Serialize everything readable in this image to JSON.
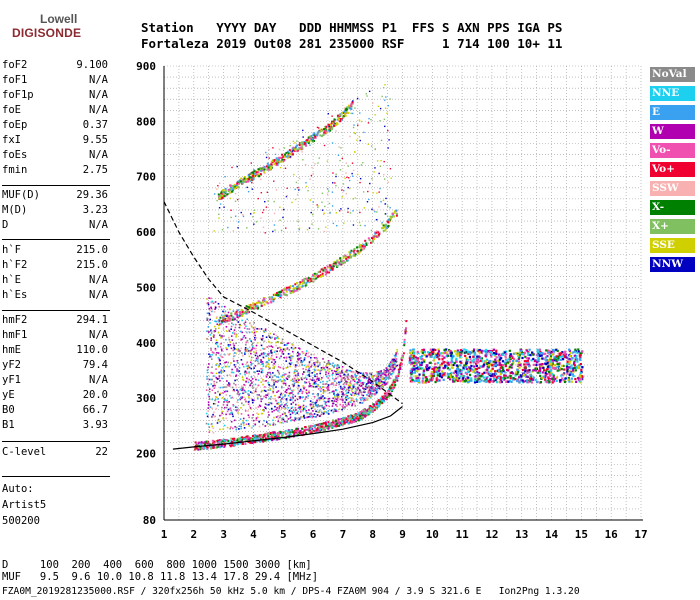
{
  "logo": {
    "top": "Lowell",
    "main": "DIGISONDE"
  },
  "header": {
    "row1": "Station   YYYY DAY   DDD HHMMSS P1  FFS S AXN PPS IGA PS",
    "row2": "Fortaleza 2019 Out08 281 235000 RSF     1 714 100 10+ 11"
  },
  "params": [
    {
      "name": "foF2",
      "value": "9.100"
    },
    {
      "name": "foF1",
      "value": "N/A"
    },
    {
      "name": "foF1p",
      "value": "N/A"
    },
    {
      "name": "foE",
      "value": "N/A"
    },
    {
      "name": "foEp",
      "value": "0.37"
    },
    {
      "name": "fxI",
      "value": "9.55"
    },
    {
      "name": "foEs",
      "value": "N/A"
    },
    {
      "name": "fmin",
      "value": "2.75"
    },
    {
      "name": "MUF(D)",
      "value": "29.36"
    },
    {
      "name": "M(D)",
      "value": "3.23"
    },
    {
      "name": "D",
      "value": "N/A"
    },
    {
      "name": "h`F",
      "value": "215.0"
    },
    {
      "name": "h`F2",
      "value": "215.0"
    },
    {
      "name": "h`E",
      "value": "N/A"
    },
    {
      "name": "h`Es",
      "value": "N/A"
    },
    {
      "name": "hmF2",
      "value": "294.1"
    },
    {
      "name": "hmF1",
      "value": "N/A"
    },
    {
      "name": "hmE",
      "value": "110.0"
    },
    {
      "name": "yF2",
      "value": "79.4"
    },
    {
      "name": "yF1",
      "value": "N/A"
    },
    {
      "name": "yE",
      "value": "20.0"
    },
    {
      "name": "B0",
      "value": "66.7"
    },
    {
      "name": "B1",
      "value": "3.93"
    },
    {
      "name": "C-level",
      "value": "22"
    }
  ],
  "auto": {
    "line1": "Auto:",
    "line2": "Artist5",
    "line3": "500200"
  },
  "legend": [
    {
      "label": "NoVal",
      "color": "#8a8a8a"
    },
    {
      "label": "NNE",
      "color": "#1ed0f0"
    },
    {
      "label": "E",
      "color": "#3aa0f0"
    },
    {
      "label": "W",
      "color": "#b000b0"
    },
    {
      "label": "Vo-",
      "color": "#f050b0"
    },
    {
      "label": "Vo+",
      "color": "#f00030"
    },
    {
      "label": "SSW",
      "color": "#f8b0b0"
    },
    {
      "label": "X-",
      "color": "#008000"
    },
    {
      "label": "X+",
      "color": "#80c060"
    },
    {
      "label": "SSE",
      "color": "#d0d000"
    },
    {
      "label": "NNW",
      "color": "#0000c0"
    }
  ],
  "footer": {
    "d_line": "D     100  200  400  600  800 1000 1500 3000 [km]",
    "muf_line": "MUF   9.5  9.6 10.0 10.8 11.8 13.4 17.8 29.4 [MHz]",
    "file_line": "FZA0M_2019281235000.RSF / 320fx256h 50 kHz 5.0 km / DPS-4 FZA0M 904 / 3.9 S 321.6 E   Ion2Png 1.3.20"
  },
  "chart_data": {
    "type": "scatter",
    "xlim": [
      1,
      17
    ],
    "ylim": [
      80,
      900
    ],
    "x_ticks": [
      1,
      2,
      3,
      4,
      5,
      6,
      7,
      8,
      9,
      10,
      11,
      12,
      13,
      14,
      15,
      16,
      17
    ],
    "y_ticks": [
      80,
      200,
      300,
      400,
      500,
      600,
      700,
      800,
      900
    ],
    "grid": true,
    "legend_position": "right",
    "series": [
      {
        "name": "trace-low",
        "role": "solid",
        "points": [
          [
            1.3,
            208
          ],
          [
            2,
            212
          ],
          [
            3,
            217
          ],
          [
            4,
            223
          ],
          [
            5,
            229
          ],
          [
            6,
            236
          ],
          [
            7,
            244
          ],
          [
            8,
            256
          ],
          [
            8.6,
            268
          ],
          [
            9.0,
            285
          ]
        ]
      },
      {
        "name": "trace-high",
        "role": "dashed",
        "points": [
          [
            1.0,
            655
          ],
          [
            1.5,
            600
          ],
          [
            2.0,
            555
          ],
          [
            2.5,
            515
          ],
          [
            3.0,
            483
          ],
          [
            4.0,
            455
          ],
          [
            5.0,
            425
          ],
          [
            6.0,
            395
          ],
          [
            7.0,
            365
          ],
          [
            8.0,
            330
          ],
          [
            9.0,
            290
          ]
        ]
      },
      {
        "name": "F2-trace",
        "role": "echo",
        "points": [
          [
            2,
            215
          ],
          [
            3,
            220
          ],
          [
            4,
            228
          ],
          [
            5,
            236
          ],
          [
            6,
            246
          ],
          [
            7,
            260
          ],
          [
            7.5,
            268
          ],
          [
            8,
            285
          ],
          [
            8.5,
            310
          ],
          [
            8.8,
            340
          ],
          [
            9.0,
            380
          ],
          [
            9.1,
            440
          ]
        ]
      },
      {
        "name": "F2-multihop",
        "role": "echo",
        "points": [
          [
            2.8,
            440
          ],
          [
            3.5,
            455
          ],
          [
            4.5,
            480
          ],
          [
            5.5,
            505
          ],
          [
            6.5,
            535
          ],
          [
            7.5,
            570
          ],
          [
            8.3,
            605
          ],
          [
            8.8,
            640
          ]
        ]
      },
      {
        "name": "F2-3hop",
        "role": "echo",
        "points": [
          [
            2.8,
            665
          ],
          [
            3.5,
            690
          ],
          [
            4.5,
            720
          ],
          [
            5.5,
            755
          ],
          [
            6.5,
            790
          ],
          [
            7.3,
            830
          ]
        ]
      }
    ]
  }
}
